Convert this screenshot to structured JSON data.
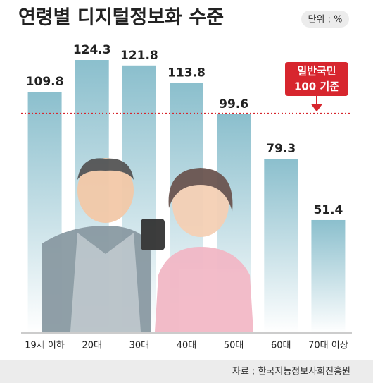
{
  "chart_data": {
    "type": "bar",
    "title": "연령별 디지털정보화 수준",
    "unit": "단위 : %",
    "categories": [
      "19세 이하",
      "20대",
      "30대",
      "40대",
      "50대",
      "60대",
      "70대 이상"
    ],
    "values": [
      109.8,
      124.3,
      121.8,
      113.8,
      99.6,
      79.3,
      51.4
    ],
    "color": "#8bbfcd",
    "ylim": [
      0,
      150
    ],
    "reference_line": {
      "value": 100,
      "label": [
        "일반국민",
        "100 기준"
      ],
      "color": "#d7262e"
    },
    "source": "자료 : 한국지능정보사회진흥원"
  }
}
